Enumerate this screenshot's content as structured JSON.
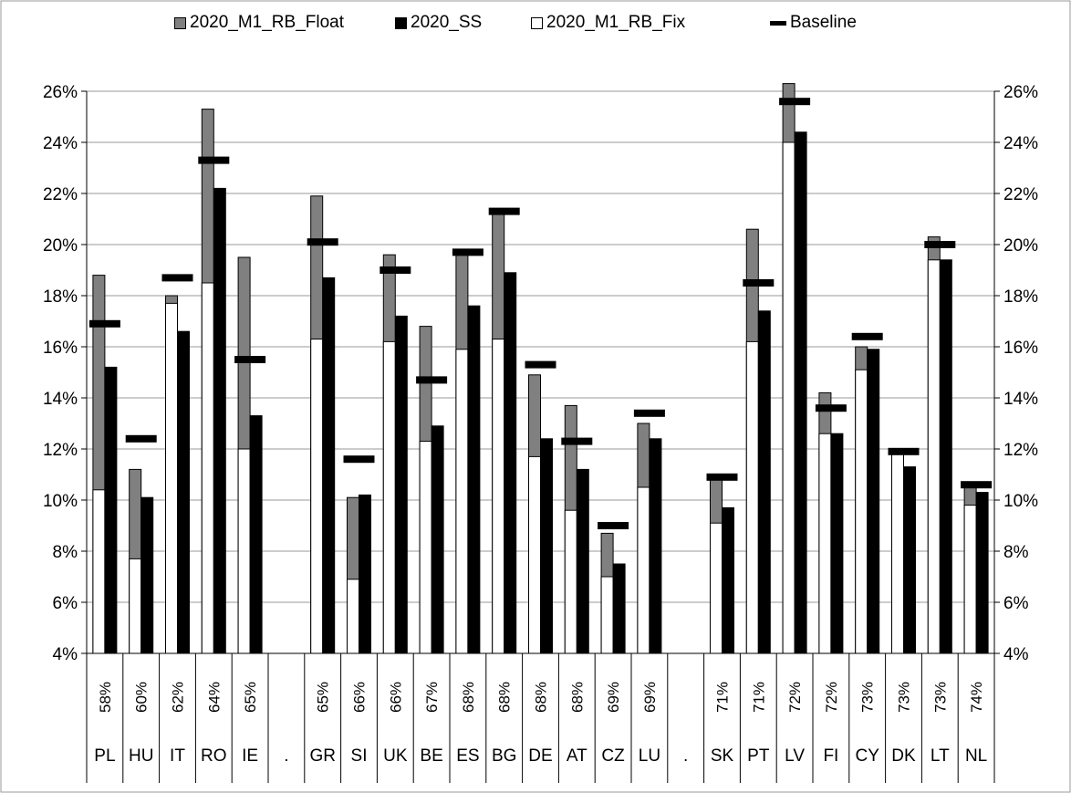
{
  "chart_data": {
    "type": "bar",
    "categories": [
      "PL",
      "HU",
      "IT",
      "RO",
      "IE",
      ".",
      "GR",
      "SI",
      "UK",
      "BE",
      "ES",
      "BG",
      "DE",
      "AT",
      "CZ",
      "LU",
      ".",
      "SK",
      "PT",
      "LV",
      "FI",
      "CY",
      "DK",
      "LT",
      "NL"
    ],
    "sub_labels": [
      "58%",
      "60%",
      "62%",
      "64%",
      "65%",
      "",
      "65%",
      "66%",
      "66%",
      "67%",
      "68%",
      "68%",
      "68%",
      "68%",
      "69%",
      "69%",
      "",
      "71%",
      "71%",
      "72%",
      "72%",
      "73%",
      "73%",
      "73%",
      "74%"
    ],
    "series": [
      {
        "name": "2020_M1_RB_Float",
        "role": "stack_top",
        "color": "#808080",
        "values": [
          18.8,
          11.2,
          18.0,
          25.3,
          19.5,
          null,
          21.9,
          10.1,
          19.6,
          16.8,
          19.7,
          21.2,
          14.9,
          13.7,
          8.7,
          13.0,
          null,
          10.9,
          20.6,
          26.3,
          14.2,
          16.0,
          11.9,
          20.3,
          10.6
        ]
      },
      {
        "name": "2020_SS",
        "role": "bar",
        "color": "#000000",
        "values": [
          15.2,
          10.1,
          16.6,
          22.2,
          13.3,
          null,
          18.7,
          10.2,
          17.2,
          12.9,
          17.6,
          18.9,
          12.4,
          11.2,
          7.5,
          12.4,
          null,
          9.7,
          17.4,
          24.4,
          12.6,
          15.9,
          11.3,
          19.4,
          10.3
        ]
      },
      {
        "name": "2020_M1_RB_Fix",
        "role": "stack_base",
        "color": "#ffffff",
        "values": [
          10.4,
          7.7,
          17.7,
          18.5,
          12.0,
          null,
          16.3,
          6.9,
          16.2,
          12.3,
          15.9,
          16.3,
          11.7,
          9.6,
          7.0,
          10.5,
          null,
          9.1,
          16.2,
          24.0,
          12.6,
          15.1,
          11.8,
          19.4,
          9.8
        ]
      },
      {
        "name": "Baseline",
        "role": "marker",
        "color": "#000000",
        "values": [
          16.9,
          12.4,
          18.7,
          23.3,
          15.5,
          null,
          20.1,
          11.6,
          19.0,
          14.7,
          19.7,
          21.3,
          15.3,
          12.3,
          9.0,
          13.4,
          null,
          10.9,
          18.5,
          25.6,
          13.6,
          16.4,
          11.9,
          20.0,
          10.6
        ]
      }
    ],
    "ylim": [
      4,
      26
    ],
    "yticks": [
      4,
      6,
      8,
      10,
      12,
      14,
      16,
      18,
      20,
      22,
      24,
      26
    ],
    "ytick_labels": [
      "4%",
      "6%",
      "8%",
      "10%",
      "12%",
      "14%",
      "16%",
      "18%",
      "20%",
      "22%",
      "24%",
      "26%"
    ],
    "grid": true,
    "legend_position": "top",
    "title": "",
    "xlabel": "",
    "ylabel": ""
  },
  "legend": {
    "float_label": "2020_M1_RB_Float",
    "ss_label": "2020_SS",
    "fix_label": "2020_M1_RB_Fix",
    "baseline_label": "Baseline"
  }
}
